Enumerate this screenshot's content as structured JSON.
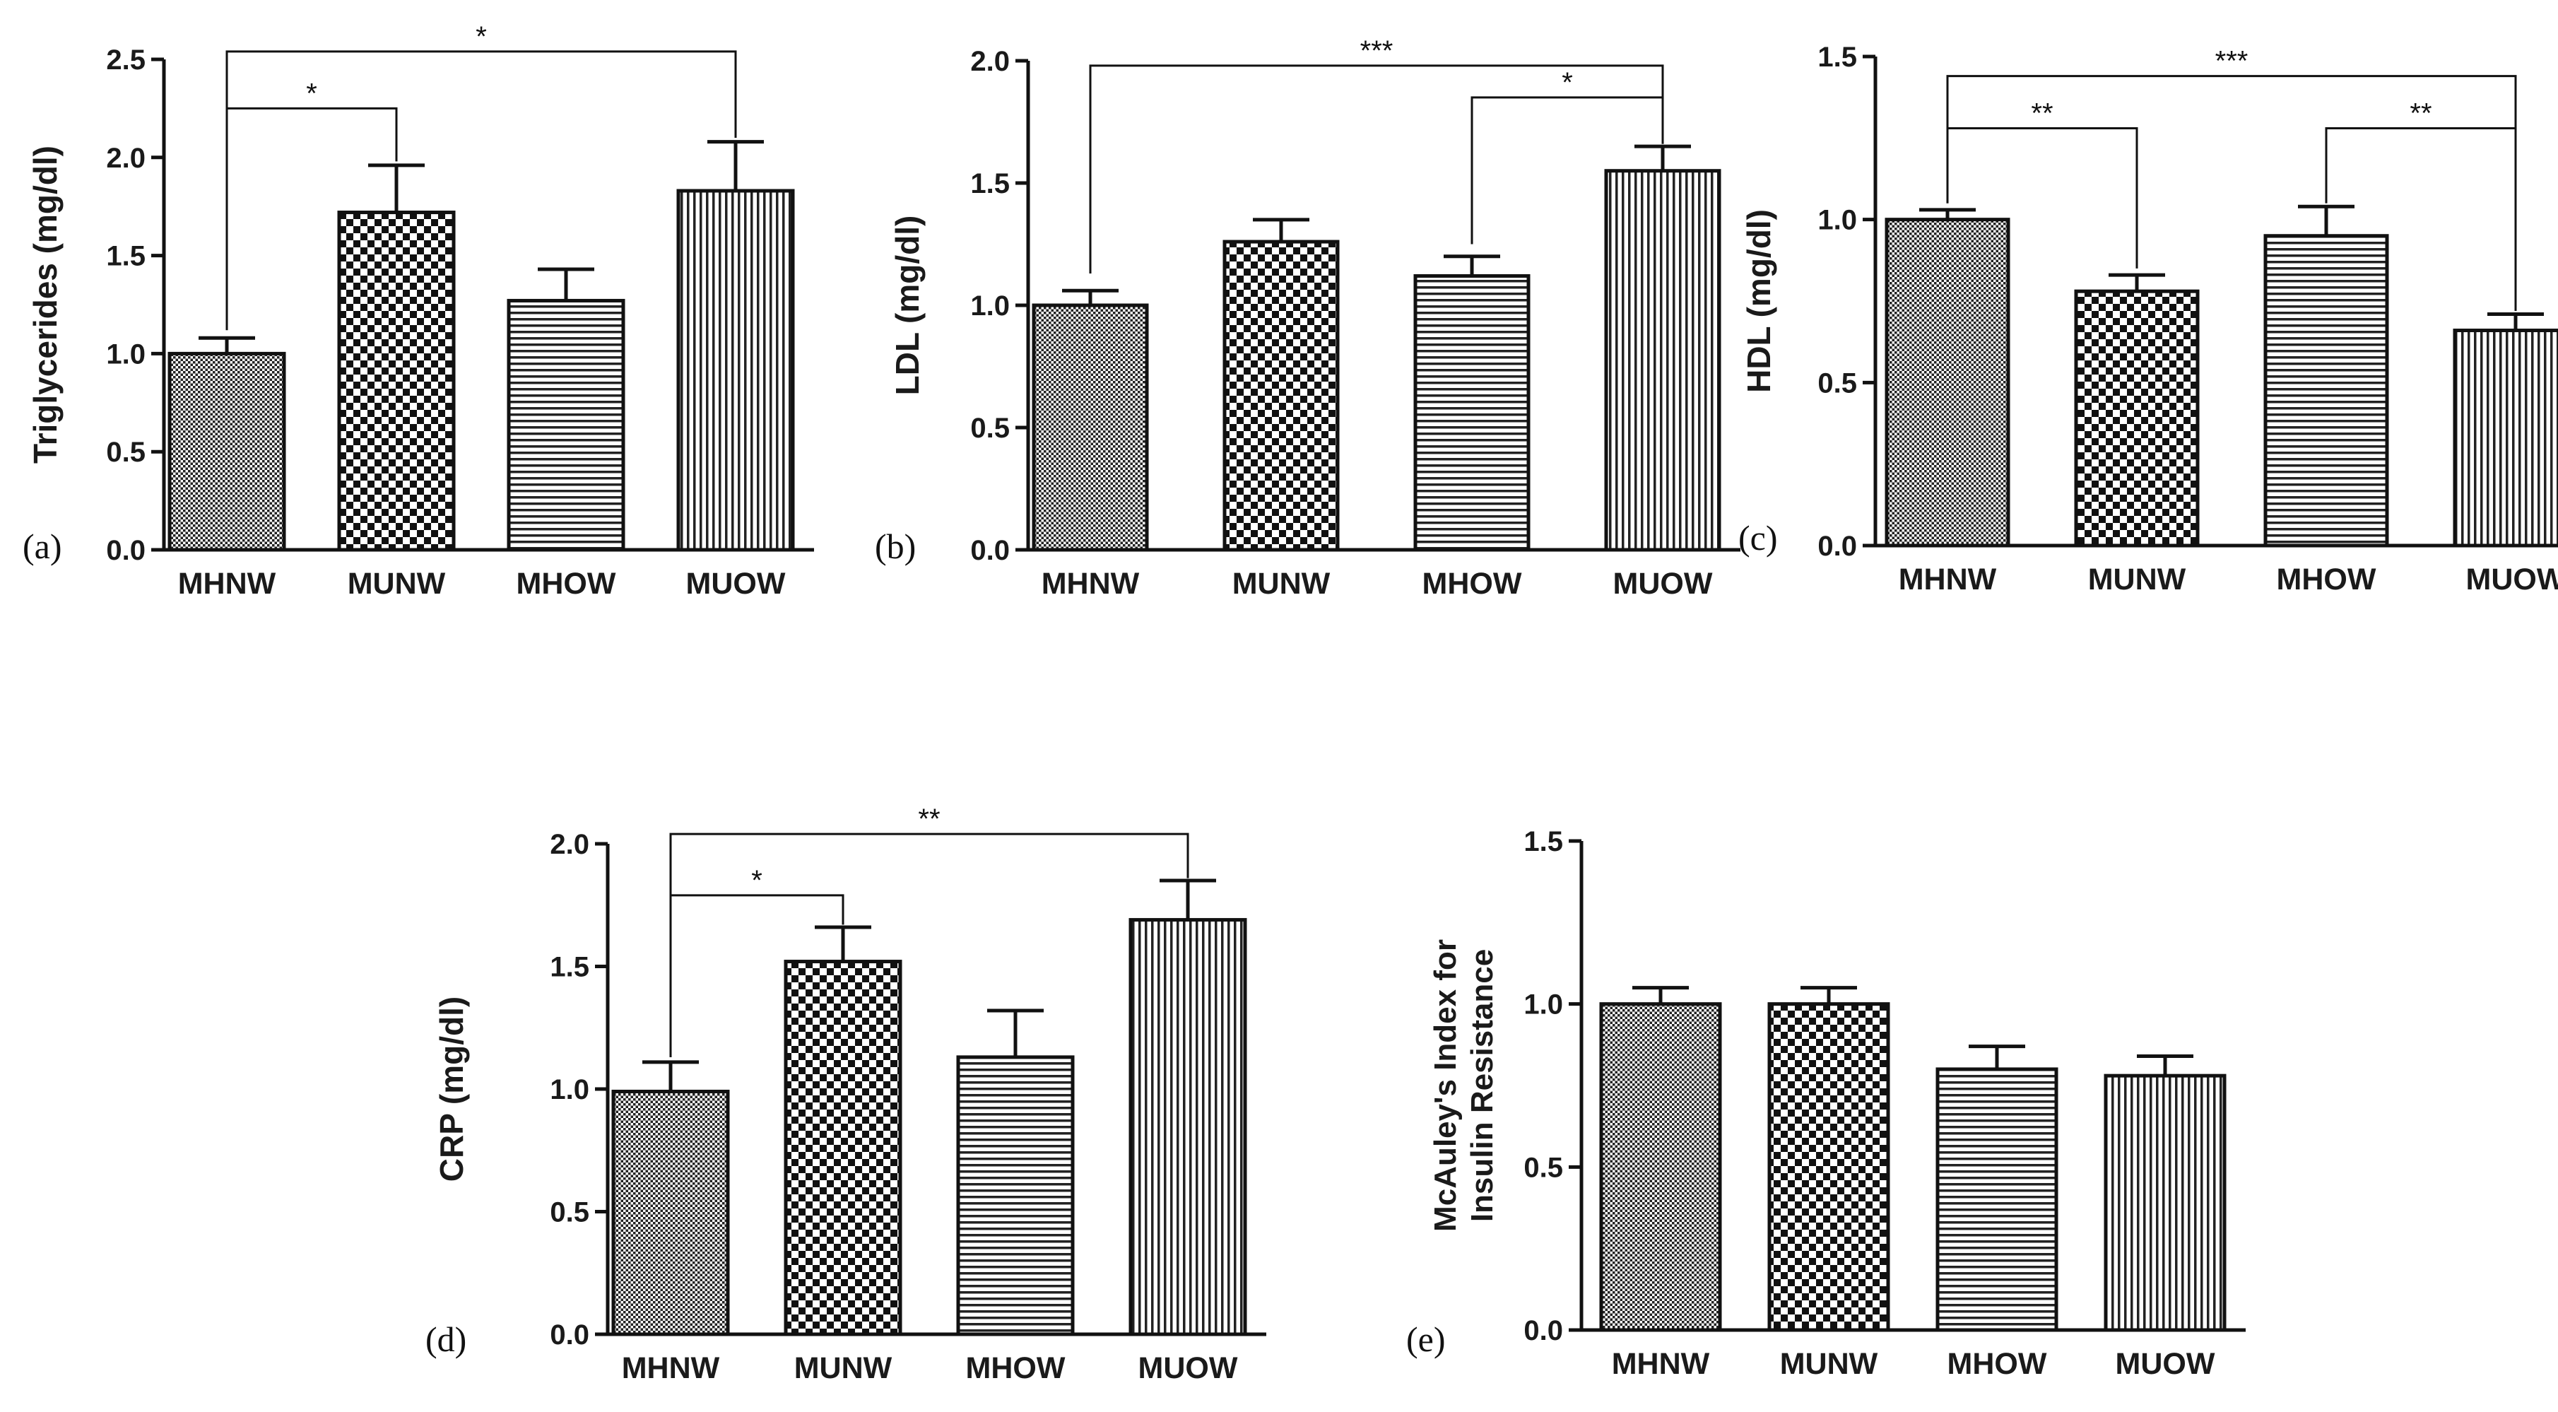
{
  "chart_data": [
    {
      "panel_label": "(a)",
      "type": "bar",
      "categories": [
        "MHNW",
        "MUNW",
        "MHOW",
        "MUOW"
      ],
      "values": [
        1.0,
        1.72,
        1.27,
        1.83
      ],
      "errors": [
        0.08,
        0.24,
        0.16,
        0.25
      ],
      "patterns": [
        "fine",
        "checker",
        "hlines",
        "vlines"
      ],
      "ylabel": "Triglycerides (mg/dl)",
      "ylim": [
        0,
        2.5
      ],
      "yticks": [
        "0.0",
        "0.5",
        "1.0",
        "1.5",
        "2.0",
        "2.5"
      ],
      "significance": [
        {
          "from": 0,
          "to": 1,
          "label": "*"
        },
        {
          "from": 0,
          "to": 3,
          "label": "*"
        }
      ]
    },
    {
      "panel_label": "(b)",
      "type": "bar",
      "categories": [
        "MHNW",
        "MUNW",
        "MHOW",
        "MUOW"
      ],
      "values": [
        1.0,
        1.26,
        1.12,
        1.55
      ],
      "errors": [
        0.06,
        0.09,
        0.08,
        0.1
      ],
      "patterns": [
        "fine",
        "checker",
        "hlines",
        "vlines"
      ],
      "ylabel": "LDL (mg/dl)",
      "ylim": [
        0,
        2.0
      ],
      "yticks": [
        "0.0",
        "0.5",
        "1.0",
        "1.5",
        "2.0"
      ],
      "significance": [
        {
          "from": 0,
          "to": 3,
          "label": "***"
        },
        {
          "from": 2,
          "to": 3,
          "label": "*"
        }
      ]
    },
    {
      "panel_label": "(c)",
      "type": "bar",
      "categories": [
        "MHNW",
        "MUNW",
        "MHOW",
        "MUOW"
      ],
      "values": [
        1.0,
        0.78,
        0.95,
        0.66
      ],
      "errors": [
        0.03,
        0.05,
        0.09,
        0.05
      ],
      "patterns": [
        "fine",
        "checker",
        "hlines",
        "vlines"
      ],
      "ylabel": "HDL (mg/dl)",
      "ylim": [
        0,
        1.5
      ],
      "yticks": [
        "0.0",
        "0.5",
        "1.0",
        "1.5"
      ],
      "significance": [
        {
          "from": 0,
          "to": 1,
          "label": "**"
        },
        {
          "from": 0,
          "to": 3,
          "label": "***"
        },
        {
          "from": 2,
          "to": 3,
          "label": "**"
        }
      ]
    },
    {
      "panel_label": "(d)",
      "type": "bar",
      "categories": [
        "MHNW",
        "MUNW",
        "MHOW",
        "MUOW"
      ],
      "values": [
        0.99,
        1.52,
        1.13,
        1.69
      ],
      "errors": [
        0.12,
        0.14,
        0.19,
        0.16
      ],
      "patterns": [
        "fine",
        "checker",
        "hlines",
        "vlines"
      ],
      "ylabel": "CRP (mg/dl)",
      "ylim": [
        0,
        2.0
      ],
      "yticks": [
        "0.0",
        "0.5",
        "1.0",
        "1.5",
        "2.0"
      ],
      "significance": [
        {
          "from": 0,
          "to": 1,
          "label": "*"
        },
        {
          "from": 0,
          "to": 3,
          "label": "**"
        }
      ]
    },
    {
      "panel_label": "(e)",
      "type": "bar",
      "categories": [
        "MHNW",
        "MUNW",
        "MHOW",
        "MUOW"
      ],
      "values": [
        1.0,
        1.0,
        0.8,
        0.78
      ],
      "errors": [
        0.05,
        0.05,
        0.07,
        0.06
      ],
      "patterns": [
        "fine",
        "checker",
        "hlines",
        "vlines"
      ],
      "ylabel_lines": [
        "McAuley's Index for",
        "Insulin Resistance"
      ],
      "ylim": [
        0,
        1.5
      ],
      "yticks": [
        "0.0",
        "0.5",
        "1.0",
        "1.5"
      ],
      "significance": []
    }
  ]
}
